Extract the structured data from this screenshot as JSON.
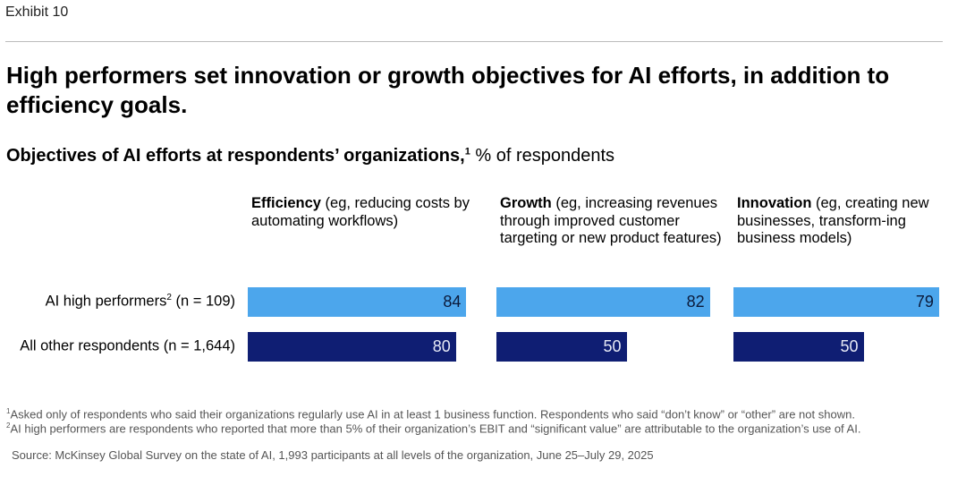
{
  "exhibit": "Exhibit 10",
  "title": "High performers set innovation or growth objectives for AI efforts, in addition to efficiency goals.",
  "subtitle": {
    "bold": "Objectives of AI efforts at respondents’ organizations,",
    "sup": "1",
    "unit": " % of respondents"
  },
  "chart_data": {
    "type": "bar",
    "orientation": "horizontal",
    "categories": [
      {
        "bold": "Efficiency",
        "rest": " (eg, reducing costs by automating workflows)"
      },
      {
        "bold": "Growth",
        "rest": " (eg, increasing revenues through improved customer targeting or new product features)"
      },
      {
        "bold": "Innovation",
        "rest": " (eg, creating new businesses, transform-ing business models)"
      }
    ],
    "series": [
      {
        "name": "AI high performers",
        "sup": "2",
        "n": " (n = 109)",
        "color": "#4ca6ec",
        "values": [
          84,
          82,
          79
        ]
      },
      {
        "name": "All other respondents",
        "sup": "",
        "n": " (n = 1,644)",
        "color": "#0f1e73",
        "values": [
          80,
          50,
          50
        ]
      }
    ],
    "xlim": [
      0,
      100
    ]
  },
  "footnotes": [
    {
      "sup": "1",
      "text": "Asked only of respondents who said their organizations regularly use AI in at least 1 business function. Respondents who said “don’t know” or “other” are not shown."
    },
    {
      "sup": "2",
      "text": "AI high performers are respondents who reported that more than 5% of their organization’s EBIT and “significant value” are attributable to the organization’s use of AI."
    }
  ],
  "source": "Source: McKinsey Global Survey on the state of AI, 1,993 participants at all levels of the organization, June 25–July 29, 2025"
}
